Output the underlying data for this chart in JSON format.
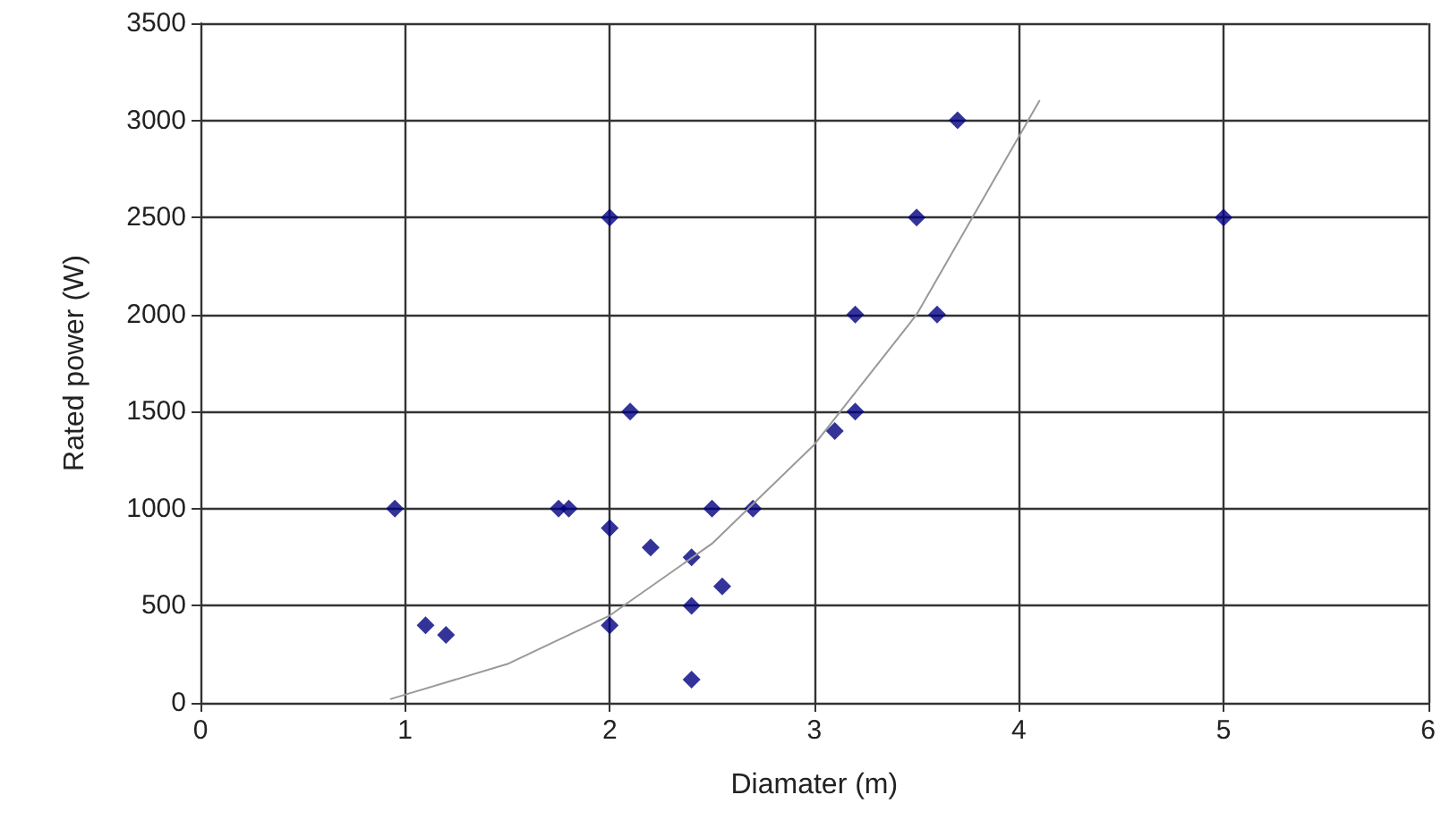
{
  "chart_data": {
    "type": "scatter",
    "xlabel": "Diamater (m)",
    "ylabel": "Rated power (W)",
    "xlim": [
      0,
      6
    ],
    "xticks": [
      0,
      1,
      2,
      3,
      4,
      5,
      6
    ],
    "ylim": [
      0,
      3500
    ],
    "yticks": [
      0,
      500,
      1000,
      1500,
      2000,
      2500,
      3000,
      3500
    ],
    "grid": true,
    "marker": "diamond",
    "series": [
      {
        "color": "#000080",
        "x": [
          0.95,
          1.1,
          1.2,
          1.75,
          1.8,
          2.0,
          2.0,
          2.0,
          2.1,
          2.2,
          2.4,
          2.4,
          2.4,
          2.5,
          2.55,
          2.7,
          3.1,
          3.2,
          3.2,
          3.5,
          3.6,
          3.7,
          5.0
        ],
        "values": [
          1000,
          400,
          350,
          1000,
          1000,
          2500,
          900,
          400,
          1500,
          800,
          750,
          500,
          120,
          1000,
          600,
          1000,
          1400,
          1500,
          2000,
          2500,
          2000,
          3000,
          2500
        ]
      },
      {
        "type": "line",
        "color": "#999999",
        "marker": "none",
        "x": [
          0.93,
          1.5,
          2.0,
          2.5,
          3.0,
          3.5,
          4.1
        ],
        "values": [
          20,
          200,
          450,
          820,
          1330,
          2000,
          3100
        ]
      }
    ]
  }
}
